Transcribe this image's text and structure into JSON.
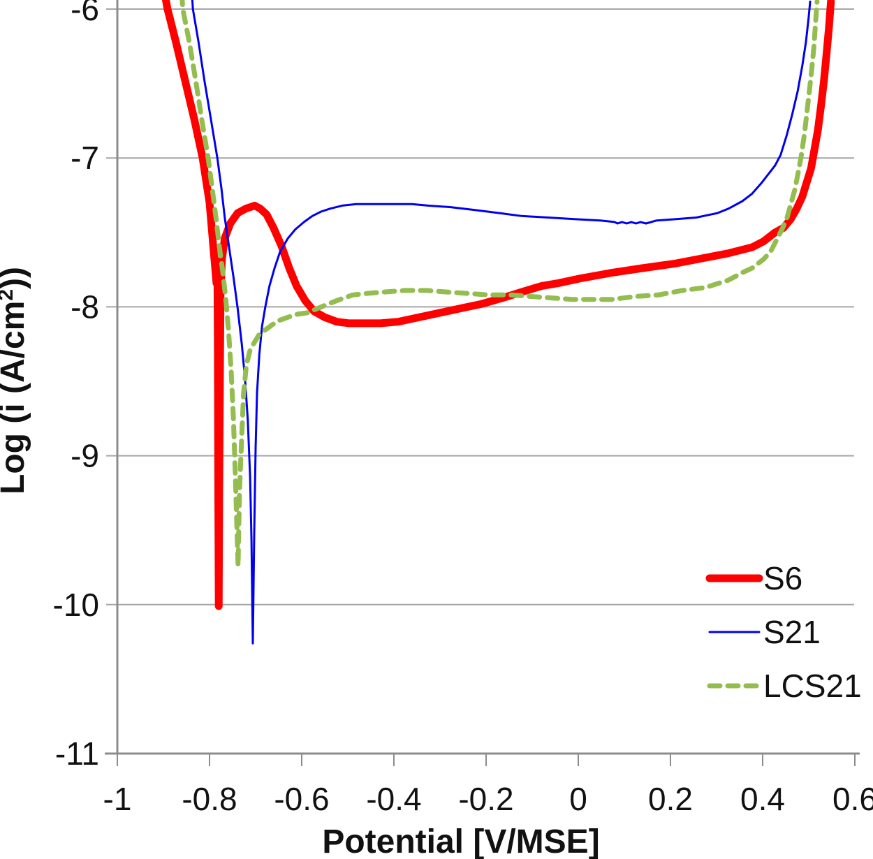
{
  "figure": {
    "background": "#FFFFFF"
  },
  "colors": {
    "grid": "#A6A6A6",
    "axis": "#8C8C8C",
    "text": "#111111",
    "s6": "#FF0000",
    "s21": "#0000EE",
    "lcs21": "#94BD4F"
  },
  "chart_data": {
    "type": "line",
    "title": "",
    "xlabel": "Potential [V/MSE]",
    "ylabel": "Log (i (A/cm2))",
    "ylabel_parts": [
      {
        "text": "Log (i (A/cm"
      },
      {
        "text": "2",
        "super": true
      },
      {
        "text": "))"
      }
    ],
    "xlim": [
      -1,
      0.6
    ],
    "ylim": [
      -11,
      -6
    ],
    "grid": "horizontal",
    "x_ticks": [
      -1,
      -0.8,
      -0.6,
      -0.4,
      -0.2,
      0,
      0.2,
      0.4,
      0.6
    ],
    "x_tick_labels": [
      "-1",
      "-0.8",
      "-0.6",
      "-0.4",
      "-0.2",
      "0",
      "0.2",
      "0.4",
      "0.6"
    ],
    "y_ticks": [
      -6,
      -7,
      -8,
      -9,
      -10,
      -11
    ],
    "y_tick_labels": [
      "-6",
      "-7",
      "-8",
      "-9",
      "-10",
      "-11"
    ],
    "legend": {
      "position": "inside-bottom-right",
      "entries": [
        "S6",
        "S21",
        "LCS21"
      ]
    },
    "series": [
      {
        "name": "S6",
        "color": "#FF0000",
        "stroke_width": 11,
        "dash": null,
        "points": [
          [
            -0.897,
            -5.9
          ],
          [
            -0.891,
            -6.0
          ],
          [
            -0.873,
            -6.22
          ],
          [
            -0.853,
            -6.48
          ],
          [
            -0.833,
            -6.74
          ],
          [
            -0.815,
            -7.0
          ],
          [
            -0.8,
            -7.3
          ],
          [
            -0.792,
            -7.59
          ],
          [
            -0.788,
            -7.73
          ],
          [
            -0.785,
            -7.84
          ],
          [
            -0.783,
            -7.72
          ],
          [
            -0.782,
            -8.29
          ],
          [
            -0.781,
            -9.24
          ],
          [
            -0.78,
            -10.01
          ],
          [
            -0.779,
            -9.24
          ],
          [
            -0.777,
            -8.29
          ],
          [
            -0.776,
            -7.92
          ],
          [
            -0.773,
            -7.68
          ],
          [
            -0.767,
            -7.54
          ],
          [
            -0.755,
            -7.44
          ],
          [
            -0.739,
            -7.37
          ],
          [
            -0.721,
            -7.34
          ],
          [
            -0.702,
            -7.32
          ],
          [
            -0.69,
            -7.34
          ],
          [
            -0.676,
            -7.38
          ],
          [
            -0.661,
            -7.47
          ],
          [
            -0.644,
            -7.59
          ],
          [
            -0.627,
            -7.74
          ],
          [
            -0.611,
            -7.86
          ],
          [
            -0.592,
            -7.96
          ],
          [
            -0.573,
            -8.03
          ],
          [
            -0.55,
            -8.07
          ],
          [
            -0.524,
            -8.1
          ],
          [
            -0.497,
            -8.11
          ],
          [
            -0.467,
            -8.11
          ],
          [
            -0.429,
            -8.11
          ],
          [
            -0.391,
            -8.1
          ],
          [
            -0.345,
            -8.07
          ],
          [
            -0.3,
            -8.04
          ],
          [
            -0.255,
            -8.01
          ],
          [
            -0.209,
            -7.98
          ],
          [
            -0.164,
            -7.94
          ],
          [
            -0.123,
            -7.9
          ],
          [
            -0.08,
            -7.86
          ],
          [
            -0.042,
            -7.84
          ],
          [
            0.003,
            -7.81
          ],
          [
            0.074,
            -7.77
          ],
          [
            0.139,
            -7.74
          ],
          [
            0.208,
            -7.71
          ],
          [
            0.276,
            -7.67
          ],
          [
            0.326,
            -7.64
          ],
          [
            0.377,
            -7.6
          ],
          [
            0.402,
            -7.56
          ],
          [
            0.427,
            -7.5
          ],
          [
            0.445,
            -7.47
          ],
          [
            0.461,
            -7.41
          ],
          [
            0.474,
            -7.34
          ],
          [
            0.486,
            -7.26
          ],
          [
            0.495,
            -7.17
          ],
          [
            0.505,
            -7.07
          ],
          [
            0.512,
            -6.95
          ],
          [
            0.52,
            -6.81
          ],
          [
            0.527,
            -6.64
          ],
          [
            0.533,
            -6.48
          ],
          [
            0.539,
            -6.29
          ],
          [
            0.544,
            -6.12
          ],
          [
            0.548,
            -5.95
          ]
        ]
      },
      {
        "name": "S21",
        "color": "#0000EE",
        "stroke_width": 3,
        "dash": null,
        "points": [
          [
            -0.838,
            -5.9
          ],
          [
            -0.836,
            -6.0
          ],
          [
            -0.824,
            -6.22
          ],
          [
            -0.811,
            -6.48
          ],
          [
            -0.797,
            -6.74
          ],
          [
            -0.783,
            -7.0
          ],
          [
            -0.774,
            -7.21
          ],
          [
            -0.767,
            -7.4
          ],
          [
            -0.758,
            -7.59
          ],
          [
            -0.748,
            -7.8
          ],
          [
            -0.739,
            -8.01
          ],
          [
            -0.73,
            -8.25
          ],
          [
            -0.723,
            -8.48
          ],
          [
            -0.717,
            -8.76
          ],
          [
            -0.712,
            -9.14
          ],
          [
            -0.709,
            -9.57
          ],
          [
            -0.706,
            -10.26
          ],
          [
            -0.703,
            -9.52
          ],
          [
            -0.7,
            -8.95
          ],
          [
            -0.697,
            -8.58
          ],
          [
            -0.692,
            -8.32
          ],
          [
            -0.686,
            -8.13
          ],
          [
            -0.679,
            -8.0
          ],
          [
            -0.67,
            -7.86
          ],
          [
            -0.659,
            -7.74
          ],
          [
            -0.647,
            -7.63
          ],
          [
            -0.63,
            -7.54
          ],
          [
            -0.614,
            -7.48
          ],
          [
            -0.595,
            -7.43
          ],
          [
            -0.577,
            -7.39
          ],
          [
            -0.558,
            -7.36
          ],
          [
            -0.538,
            -7.34
          ],
          [
            -0.512,
            -7.32
          ],
          [
            -0.482,
            -7.31
          ],
          [
            -0.444,
            -7.31
          ],
          [
            -0.406,
            -7.31
          ],
          [
            -0.361,
            -7.31
          ],
          [
            -0.326,
            -7.32
          ],
          [
            -0.277,
            -7.33
          ],
          [
            -0.224,
            -7.35
          ],
          [
            -0.171,
            -7.37
          ],
          [
            -0.123,
            -7.39
          ],
          [
            -0.065,
            -7.4
          ],
          [
            -0.012,
            -7.41
          ],
          [
            0.048,
            -7.42
          ],
          [
            0.079,
            -7.43
          ],
          [
            0.085,
            -7.44
          ],
          [
            0.095,
            -7.43
          ],
          [
            0.105,
            -7.44
          ],
          [
            0.115,
            -7.43
          ],
          [
            0.125,
            -7.44
          ],
          [
            0.135,
            -7.43
          ],
          [
            0.147,
            -7.44
          ],
          [
            0.17,
            -7.42
          ],
          [
            0.215,
            -7.41
          ],
          [
            0.256,
            -7.4
          ],
          [
            0.302,
            -7.37
          ],
          [
            0.326,
            -7.34
          ],
          [
            0.356,
            -7.29
          ],
          [
            0.377,
            -7.24
          ],
          [
            0.397,
            -7.17
          ],
          [
            0.412,
            -7.11
          ],
          [
            0.427,
            -7.05
          ],
          [
            0.439,
            -6.98
          ],
          [
            0.452,
            -6.85
          ],
          [
            0.464,
            -6.71
          ],
          [
            0.476,
            -6.55
          ],
          [
            0.486,
            -6.38
          ],
          [
            0.494,
            -6.22
          ],
          [
            0.5,
            -6.05
          ],
          [
            0.503,
            -5.95
          ]
        ]
      },
      {
        "name": "LCS21",
        "color": "#94BD4F",
        "stroke_width": 7,
        "dash": [
          15,
          11
        ],
        "points": [
          [
            -0.86,
            -5.9
          ],
          [
            -0.858,
            -6.0
          ],
          [
            -0.844,
            -6.22
          ],
          [
            -0.83,
            -6.48
          ],
          [
            -0.817,
            -6.74
          ],
          [
            -0.803,
            -7.0
          ],
          [
            -0.794,
            -7.21
          ],
          [
            -0.786,
            -7.4
          ],
          [
            -0.779,
            -7.59
          ],
          [
            -0.771,
            -7.77
          ],
          [
            -0.765,
            -7.94
          ],
          [
            -0.759,
            -8.15
          ],
          [
            -0.753,
            -8.43
          ],
          [
            -0.748,
            -8.76
          ],
          [
            -0.744,
            -9.14
          ],
          [
            -0.741,
            -9.43
          ],
          [
            -0.738,
            -9.74
          ],
          [
            -0.735,
            -9.24
          ],
          [
            -0.73,
            -8.86
          ],
          [
            -0.726,
            -8.58
          ],
          [
            -0.72,
            -8.39
          ],
          [
            -0.712,
            -8.29
          ],
          [
            -0.703,
            -8.24
          ],
          [
            -0.691,
            -8.18
          ],
          [
            -0.677,
            -8.15
          ],
          [
            -0.664,
            -8.12
          ],
          [
            -0.648,
            -8.09
          ],
          [
            -0.63,
            -8.07
          ],
          [
            -0.611,
            -8.05
          ],
          [
            -0.588,
            -8.04
          ],
          [
            -0.565,
            -8.01
          ],
          [
            -0.542,
            -7.98
          ],
          [
            -0.517,
            -7.95
          ],
          [
            -0.489,
            -7.92
          ],
          [
            -0.459,
            -7.91
          ],
          [
            -0.421,
            -7.9
          ],
          [
            -0.376,
            -7.89
          ],
          [
            -0.33,
            -7.89
          ],
          [
            -0.285,
            -7.9
          ],
          [
            -0.239,
            -7.91
          ],
          [
            -0.194,
            -7.92
          ],
          [
            -0.148,
            -7.92
          ],
          [
            -0.103,
            -7.93
          ],
          [
            -0.058,
            -7.94
          ],
          [
            -0.012,
            -7.95
          ],
          [
            0.041,
            -7.95
          ],
          [
            0.074,
            -7.95
          ],
          [
            0.124,
            -7.93
          ],
          [
            0.174,
            -7.92
          ],
          [
            0.226,
            -7.89
          ],
          [
            0.276,
            -7.87
          ],
          [
            0.326,
            -7.82
          ],
          [
            0.356,
            -7.77
          ],
          [
            0.377,
            -7.74
          ],
          [
            0.402,
            -7.68
          ],
          [
            0.417,
            -7.63
          ],
          [
            0.432,
            -7.54
          ],
          [
            0.442,
            -7.48
          ],
          [
            0.453,
            -7.4
          ],
          [
            0.462,
            -7.3
          ],
          [
            0.47,
            -7.21
          ],
          [
            0.477,
            -7.1
          ],
          [
            0.483,
            -7.0
          ],
          [
            0.491,
            -6.83
          ],
          [
            0.498,
            -6.64
          ],
          [
            0.505,
            -6.45
          ],
          [
            0.511,
            -6.26
          ],
          [
            0.515,
            -6.08
          ],
          [
            0.518,
            -5.95
          ]
        ]
      }
    ]
  }
}
